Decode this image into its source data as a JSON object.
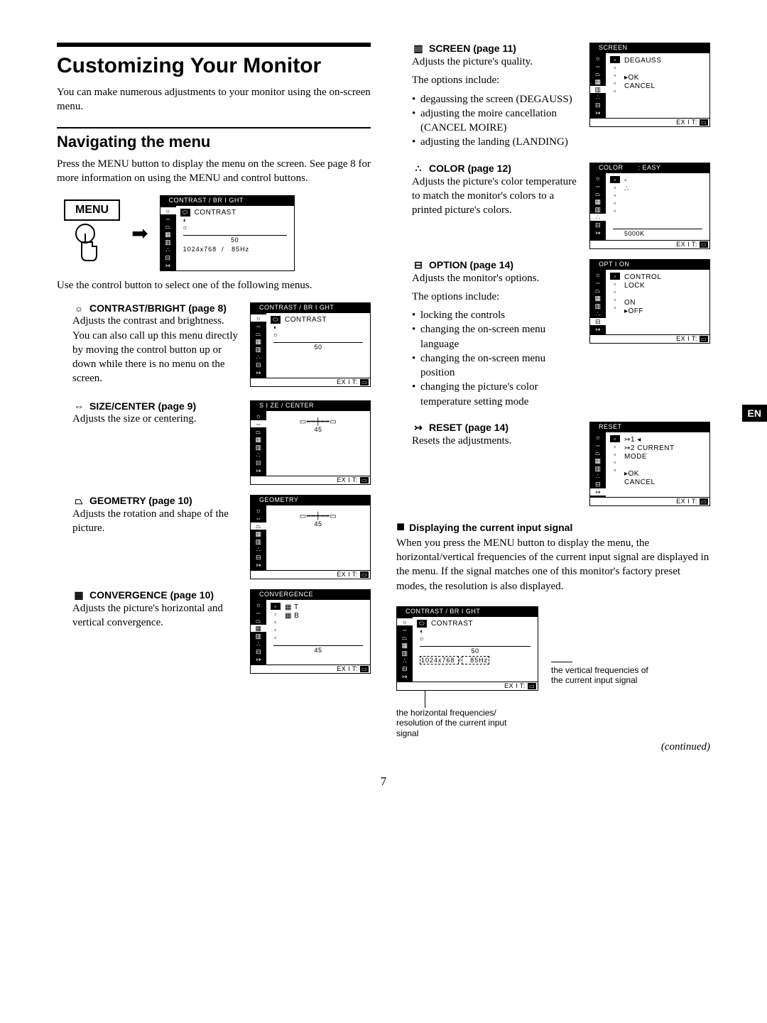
{
  "page": {
    "number": "7",
    "continued": "(continued)",
    "lang_tab": "EN"
  },
  "title": "Customizing Your Monitor",
  "intro": "You can make numerous adjustments to your monitor using the on-screen menu.",
  "nav": {
    "heading": "Navigating the menu",
    "para1": "Press the MENU button to display the menu on the screen. See page 8 for more information on using the MENU and control buttons.",
    "menu_label": "MENU",
    "para2": "Use the control button to select one of the following menus."
  },
  "sections": {
    "contrast": {
      "head": "CONTRAST/BRIGHT (page 8)",
      "icon": "☼",
      "body": "Adjusts the contrast and brightness. You can also call up this menu directly by moving the control button up or down while there is no menu on the screen."
    },
    "size": {
      "head": "SIZE/CENTER  (page 9)",
      "icon": "⇔",
      "body": "Adjusts the size or centering."
    },
    "geometry": {
      "head": "GEOMETRY (page 10)",
      "icon": "⏢",
      "body": "Adjusts the rotation and shape of the picture."
    },
    "convergence": {
      "head": "CONVERGENCE (page 10)",
      "icon": "▦",
      "body": "Adjusts the picture's horizontal and vertical convergence."
    },
    "screen": {
      "head": "SCREEN (page 11)",
      "icon": "▥",
      "body": "Adjusts the picture's quality.",
      "opts_label": "The options include:",
      "opts": [
        "degaussing the screen (DEGAUSS)",
        "adjusting the moire cancellation (CANCEL MOIRE)",
        "adjusting the landing (LANDING)"
      ]
    },
    "color": {
      "head": "COLOR (page 12)",
      "icon": "∴",
      "body": "Adjusts the picture's color temperature to match the monitor's colors to a printed picture's colors."
    },
    "option": {
      "head": "OPTION (page 14)",
      "icon": "⊟",
      "body": "Adjusts the monitor's options.",
      "opts_label": "The options include:",
      "opts": [
        "locking the controls",
        "changing the on-screen menu language",
        "changing the on-screen menu position",
        "changing the picture's color temperature setting mode"
      ]
    },
    "reset": {
      "head": "RESET (page 14)",
      "icon": "↣",
      "body": "Resets the adjustments."
    }
  },
  "signal": {
    "head": "Displaying the current input signal",
    "body": "When you press the MENU button to display the menu, the horizontal/vertical frequencies of the current input signal are displayed in the menu. If the signal matches one of this monitor's factory preset modes, the resolution is also displayed.",
    "callout_vert": "the vertical frequencies of the current input signal",
    "callout_horiz": "the horizontal frequencies/ resolution of the current input signal"
  },
  "osd": {
    "exit_label": "EX I T",
    "menu_badge": "▭",
    "side_icons": [
      "☼",
      "⇔",
      "⏢",
      "▦",
      "▥",
      "∴",
      "⊟",
      "↣"
    ],
    "contrast": {
      "title": "CONTRAST / BR I GHT",
      "label": "CONTRAST",
      "value": "50",
      "info": "1024x768  /   85Hz",
      "sel": 0
    },
    "size": {
      "title": "S I ZE / CENTER",
      "value": "45",
      "sel": 1
    },
    "geometry": {
      "title": "GEOMETRY",
      "value": "45",
      "sel": 2
    },
    "conv": {
      "title": "CONVERGENCE",
      "rows": [
        "▦ T",
        "▦ B"
      ],
      "value": "45",
      "sel": 3
    },
    "screen": {
      "title": "SCREEN",
      "rows": [
        "DEGAUSS",
        "",
        "▸OK",
        "  CANCEL"
      ],
      "sel": 4
    },
    "color": {
      "title": "COLOR       : EASY",
      "rows": [
        "▫",
        "∴"
      ],
      "value": "5000K",
      "sel": 5
    },
    "option": {
      "title": "OPT I ON",
      "rows": [
        "CONTROL",
        "LOCK",
        "",
        "  ON",
        "▸OFF"
      ],
      "sel": 6
    },
    "reset": {
      "title": "RESET",
      "rows": [
        "↣1 ◂",
        "↣2    CURRENT",
        "        MODE",
        "",
        "▸OK",
        "  CANCEL"
      ],
      "sel": 7
    },
    "signal": {
      "title": "CONTRAST / BR I GHT",
      "label": "CONTRAST",
      "value": "50",
      "info": "1024x768 /   85Hz",
      "sel": 0
    }
  },
  "style": {
    "bg": "#ffffff",
    "fg": "#000000",
    "h1_fontsize": 30,
    "h2_fontsize": 22,
    "body_fontsize": 15,
    "osd_fontsize": 9,
    "font_sans": "Arial, Helvetica, sans-serif",
    "font_serif": "Times New Roman, Times, serif"
  }
}
